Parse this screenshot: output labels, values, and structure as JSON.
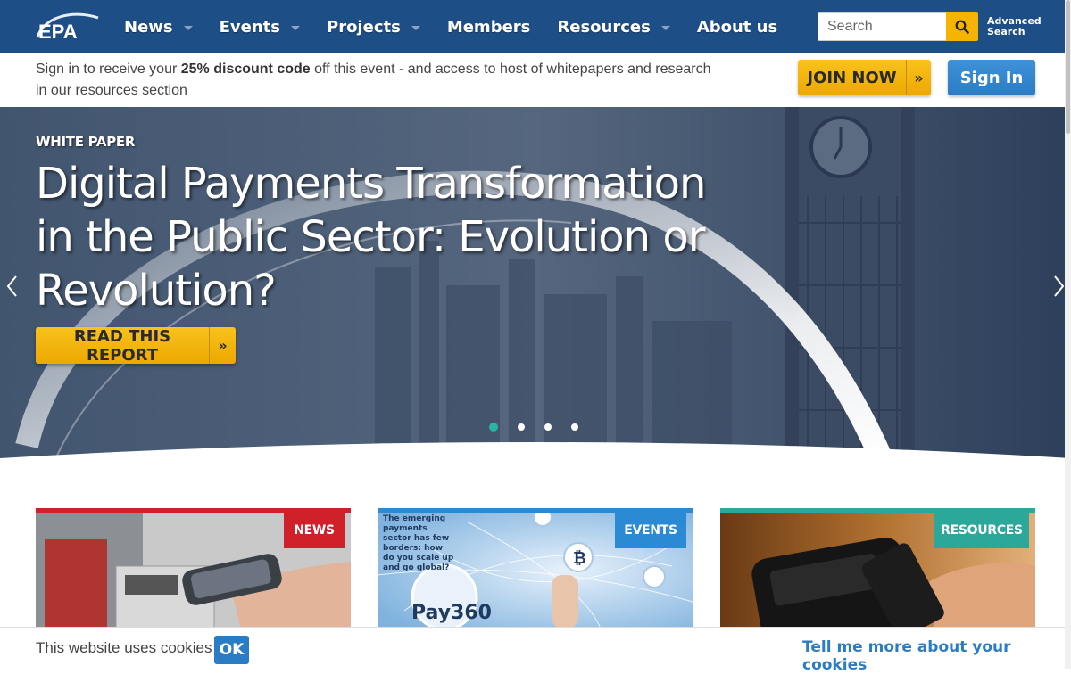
{
  "nav": {
    "logo_text": "EPA",
    "items": [
      {
        "label": "News",
        "has_caret": true
      },
      {
        "label": "Events",
        "has_caret": true
      },
      {
        "label": "Projects",
        "has_caret": true
      },
      {
        "label": "Members",
        "has_caret": false
      },
      {
        "label": "Resources",
        "has_caret": true
      },
      {
        "label": "About us",
        "has_caret": false
      }
    ],
    "search_placeholder": "Search",
    "advanced_search_line1": "Advanced",
    "advanced_search_line2": "Search"
  },
  "signin_bar": {
    "text_before": "Sign in to receive your ",
    "text_bold": "25% discount code",
    "text_after": " off this event - and access to host of whitepapers and research in our resources section",
    "join_label": "JOIN NOW",
    "signin_label": "Sign In"
  },
  "hero": {
    "kicker": "WHITE PAPER",
    "title": "Digital Payments Transformation in the Public Sector: Evolution or Revolution?",
    "cta_label": "READ THIS REPORT",
    "slide_count": 4,
    "active_slide": 1
  },
  "cards": [
    {
      "badge": "NEWS",
      "image": "hand-holding-phone-at-terminal"
    },
    {
      "badge": "EVENTS",
      "image": "pay360-global-payments-map",
      "image_text": "The emerging payments sector has few borders: how do you scale up and go global?",
      "image_logo": "Pay360"
    },
    {
      "badge": "RESOURCES",
      "image": "contactless-phone-payment"
    }
  ],
  "cookie_bar": {
    "text": "This website uses cookies",
    "ok_label": "OK",
    "more_label": "Tell me more about your cookies"
  },
  "colors": {
    "nav_bg": "#1d4e85",
    "join_yellow": "#f5b400",
    "signin_blue": "#2a7cc4",
    "news_red": "#d0202a",
    "events_blue": "#2a8ad4",
    "resources_teal": "#2ba89a"
  }
}
